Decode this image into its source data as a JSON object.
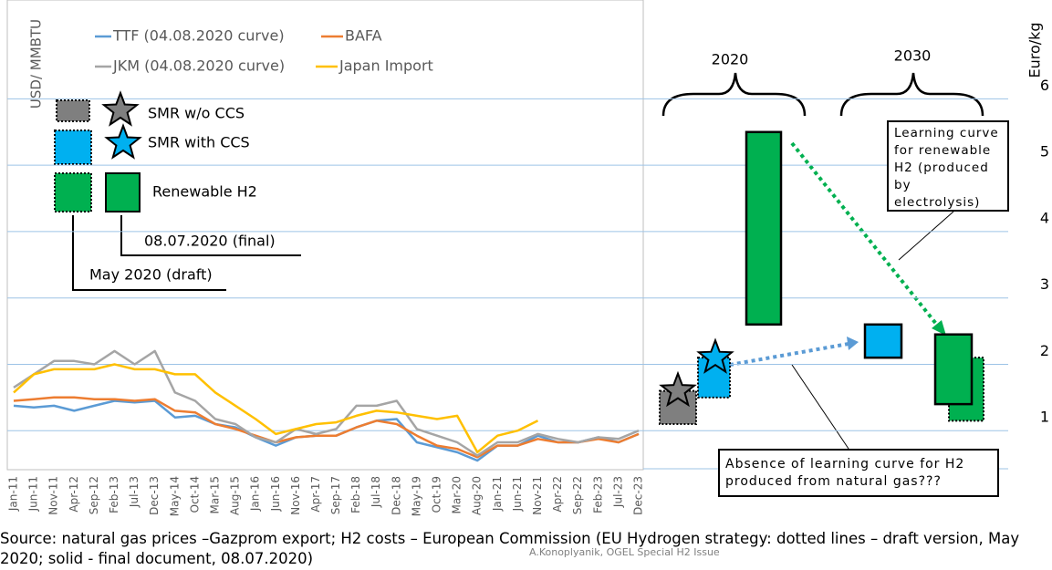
{
  "chart_data": {
    "type": "line",
    "y_label": "USD/ MMBTU",
    "y2_label": "Euro/kg",
    "categories": [
      "Jan-11",
      "Jun-11",
      "Nov-11",
      "Apr-12",
      "Sep-12",
      "Feb-13",
      "Jul-13",
      "Dec-13",
      "May-14",
      "Oct-14",
      "Mar-15",
      "Aug-15",
      "Jan-16",
      "Jun-16",
      "Nov-16",
      "Apr-17",
      "Sep-17",
      "Feb-18",
      "Jul-18",
      "Dec-18",
      "May-19",
      "Oct-19",
      "Mar-20",
      "Aug-20",
      "Jan-21",
      "Jun-21",
      "Nov-21",
      "Apr-22",
      "Sep-22",
      "Feb-23",
      "Jul-23",
      "Dec-23"
    ],
    "ylim": [
      0,
      26
    ],
    "y2lim": [
      0,
      6.5
    ],
    "y2ticks": [
      1,
      2,
      3,
      4,
      5,
      6
    ],
    "grid": true,
    "series": [
      {
        "name": "TTF (04.08.2020 curve)",
        "color": "#5b9bd5",
        "values": [
          5.5,
          5.4,
          5.5,
          5.2,
          5.5,
          5.8,
          5.7,
          5.8,
          4.8,
          4.9,
          4.4,
          4.2,
          3.6,
          3.1,
          3.6,
          3.7,
          3.7,
          4.2,
          4.6,
          4.7,
          3.3,
          3.0,
          2.7,
          2.2,
          3.1,
          3.1,
          3.7,
          3.3,
          3.3,
          3.6,
          3.3,
          3.8
        ]
      },
      {
        "name": "BAFA",
        "color": "#ed7d31",
        "values": [
          5.8,
          5.9,
          6.0,
          6.0,
          5.9,
          5.9,
          5.8,
          5.9,
          5.2,
          5.1,
          4.4,
          4.1,
          3.7,
          3.3,
          3.6,
          3.7,
          3.7,
          4.2,
          4.6,
          4.4,
          3.7,
          3.1,
          2.9,
          2.4,
          3.1,
          3.1,
          3.5,
          3.3,
          3.3,
          3.5,
          3.3,
          3.8
        ]
      },
      {
        "name": "JKM (04.08.2020 curve)",
        "color": "#a5a5a5",
        "values": [
          6.6,
          7.4,
          8.2,
          8.2,
          8.0,
          8.8,
          8.0,
          8.8,
          6.3,
          5.8,
          4.7,
          4.4,
          3.6,
          3.3,
          4.1,
          3.8,
          4.1,
          5.5,
          5.5,
          5.8,
          4.1,
          3.7,
          3.3,
          2.5,
          3.3,
          3.3,
          3.8,
          3.5,
          3.3,
          3.6,
          3.5,
          4.0
        ]
      },
      {
        "name": "Japan Import",
        "color": "#ffc000",
        "values": [
          6.3,
          7.4,
          7.7,
          7.7,
          7.7,
          8.0,
          7.7,
          7.7,
          7.4,
          7.4,
          6.3,
          5.5,
          4.7,
          3.8,
          4.1,
          4.4,
          4.5,
          4.9,
          5.2,
          5.1,
          4.9,
          4.7,
          4.9,
          2.7,
          3.7,
          4.0,
          4.6,
          null,
          null,
          null,
          null,
          null
        ]
      }
    ],
    "h2_labels": [
      "SMR w/o CCS",
      "SMR with CCS",
      "Renewable H2"
    ],
    "h2_years": [
      "2020",
      "2030"
    ],
    "h2_costs": [
      {
        "color": "#7f7f7f",
        "style": "dotted",
        "low": 1.1,
        "high": 1.6
      },
      {
        "color": "#00b0f0",
        "style": "dotted",
        "low": 1.5,
        "high": 2.1
      },
      {
        "color": "#00b050",
        "style": "solid",
        "low": 2.6,
        "high": 5.5
      },
      {
        "color": "#00b0f0",
        "style": "solid",
        "low": 2.1,
        "high": 2.6
      },
      {
        "color": "#00b050",
        "style": "dotted",
        "low": 1.15,
        "high": 2.1
      },
      {
        "color": "#00b050",
        "style": "solid",
        "low": 1.4,
        "high": 2.45
      }
    ],
    "h2_stars": [
      {
        "color": "#7f7f7f",
        "style": "solid",
        "value": 1.6
      },
      {
        "color": "#00b0f0",
        "style": "solid",
        "value": 2.1
      }
    ],
    "annotations": [
      "08.07.2020  (final)",
      "May 2020 (draft)",
      "Learning curve for renewable H2 (produced by electrolysis)",
      "Absence of learning curve for H2 produced from natural gas???"
    ],
    "source": "Source: natural gas prices –Gazprom export; H2 costs – European Commission (EU Hydrogen strategy: dotted lines – draft version, May 2020; solid - final document, 08.07.2020)",
    "credit": "A.Konoplyanik, OGEL Special H2 Issue"
  }
}
